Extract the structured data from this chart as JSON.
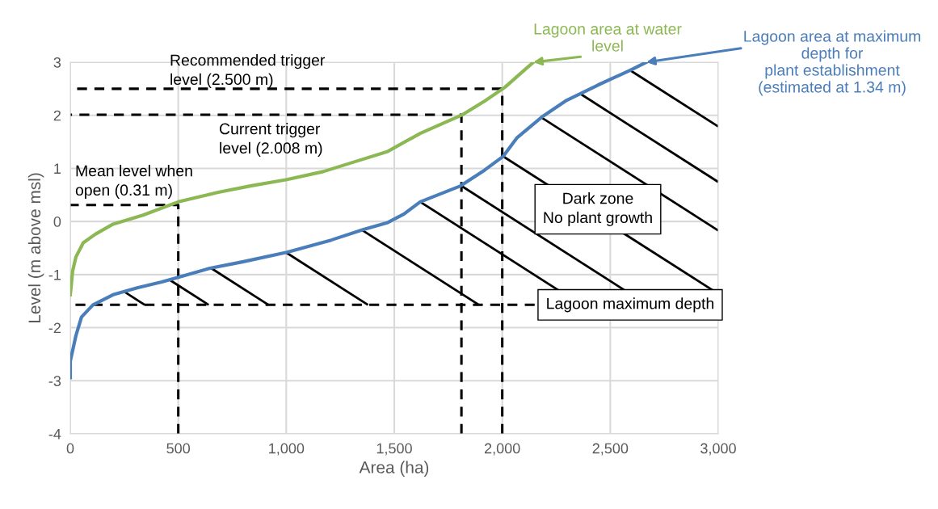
{
  "chart_data": {
    "type": "line",
    "xlabel": "Area (ha)",
    "ylabel": "Level (m above msl)",
    "xlim": [
      0,
      3000
    ],
    "ylim": [
      -4,
      3
    ],
    "xticks": [
      0,
      500,
      {
        "value": 1000,
        "label": "1,000"
      },
      {
        "value": 1500,
        "label": "1,500"
      },
      {
        "value": 2000,
        "label": "2,000"
      },
      {
        "value": 2500,
        "label": "2,500"
      },
      {
        "value": 3000,
        "label": "3,000"
      }
    ],
    "yticks": [
      -4,
      -3,
      -2,
      -1,
      0,
      1,
      2,
      3
    ],
    "grid": true,
    "marker": "none",
    "series": [
      {
        "color": "#4a7ebb",
        "line_style": "solid",
        "x": [
          0,
          0,
          26,
          52,
          105,
          198,
          310,
          423,
          500,
          647,
          797,
          1003,
          1208,
          1358,
          1470,
          1545,
          1620,
          1807,
          1919,
          2005,
          2069,
          2181,
          2293,
          2443,
          2593,
          2667
        ],
        "values": [
          -2.94,
          -2.63,
          -2.15,
          -1.8,
          -1.57,
          -1.38,
          -1.25,
          -1.14,
          -1.05,
          -0.88,
          -0.76,
          -0.58,
          -0.35,
          -0.15,
          -0.02,
          0.14,
          0.37,
          0.67,
          0.97,
          1.23,
          1.58,
          1.96,
          2.27,
          2.57,
          2.85,
          3.0
        ]
      },
      {
        "color": "#8cb853",
        "line_style": "solid",
        "x": [
          0,
          11,
          26,
          60,
          116,
          198,
          337,
          500,
          685,
          834,
          1003,
          1171,
          1321,
          1470,
          1620,
          1732,
          1811,
          1919,
          2013,
          2088,
          2144
        ],
        "values": [
          -1.38,
          -0.93,
          -0.67,
          -0.4,
          -0.24,
          -0.05,
          0.12,
          0.37,
          0.55,
          0.67,
          0.79,
          0.94,
          1.13,
          1.32,
          1.66,
          1.86,
          2.0,
          2.27,
          2.53,
          2.8,
          3.0
        ]
      },
      {
        "color": "#000000",
        "line_style": "dashed",
        "x": [
          0,
          2000,
          2000
        ],
        "values": [
          2.5,
          2.5,
          -4
        ]
      },
      {
        "color": "#000000",
        "line_style": "dashed",
        "x": [
          0,
          1811,
          1811
        ],
        "values": [
          2.01,
          2.01,
          -4
        ]
      },
      {
        "color": "#000000",
        "line_style": "dashed",
        "x": [
          0,
          500,
          500
        ],
        "values": [
          0.31,
          0.31,
          -4
        ]
      },
      {
        "color": "#000000",
        "line_style": "dashed",
        "x": [
          0,
          2150
        ],
        "values": [
          -1.57,
          -1.57
        ]
      }
    ],
    "annotations": [
      {
        "text": "Lagoon area at water\nlevel",
        "x": 2144,
        "y": 3.0
      },
      {
        "text": "Lagoon area at maximum\ndepth for\nplant establishment\n(estimated at 1.34 m)",
        "x": 2667,
        "y": 3.0
      },
      "Recommended trigger\nlevel (2.500 m)",
      "Current trigger\nlevel (2.008 m)",
      "Mean level when\nopen (0.31 m)",
      "Dark zone\nNo plant growth",
      {
        "text": "Lagoon maximum depth",
        "x": 2150,
        "y": -1.57
      }
    ]
  }
}
